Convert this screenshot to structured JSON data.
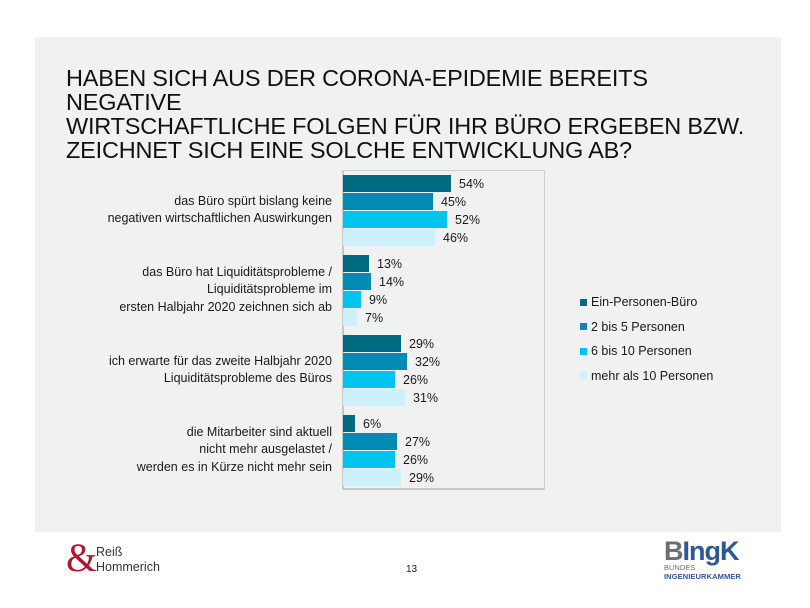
{
  "page": {
    "page_number": "13",
    "logos": {
      "left": {
        "symbol": "&",
        "text": "Reiß\nHommerich"
      },
      "right": {
        "main_first": "B",
        "main_rest": "IngK",
        "line1": "BUNDES",
        "line2": "INGENIEURKAMMER"
      }
    }
  },
  "chart_data": {
    "type": "bar",
    "orientation": "horizontal",
    "title": "HABEN SICH AUS DER CORONA-EPIDEMIE BEREITS NEGATIVE\nWIRTSCHAFTLICHE FOLGEN FÜR IHR BÜRO ERGEBEN BZW.\nZEICHNET SICH EINE SOLCHE ENTWICKLUNG AB?",
    "xlabel": "",
    "ylabel": "",
    "xlim": [
      0,
      100
    ],
    "grid": false,
    "legend_position": "right",
    "value_format": "percent",
    "categories": [
      "das Büro spürt bislang keine\nnegativen wirtschaftlichen Auswirkungen",
      "das Büro hat Liquiditätsprobleme /\nLiquiditätsprobleme im \nersten Halbjahr 2020 zeichnen sich ab",
      "ich erwarte für das zweite Halbjahr 2020\nLiquiditätsprobleme des Büros",
      "die Mitarbeiter sind aktuell \nnicht mehr ausgelastet /\nwerden es in Kürze nicht mehr sein"
    ],
    "series": [
      {
        "name": "Ein-Personen-Büro",
        "color": "#006a80",
        "values": [
          54,
          13,
          29,
          6
        ]
      },
      {
        "name": "2 bis 5 Personen",
        "color": "#008bb5",
        "values": [
          45,
          14,
          32,
          27
        ]
      },
      {
        "name": "6 bis 10 Personen",
        "color": "#00c4f0",
        "values": [
          52,
          9,
          26,
          26
        ]
      },
      {
        "name": "mehr als 10 Personen",
        "color": "#cdf0fb",
        "values": [
          46,
          7,
          31,
          29
        ]
      }
    ]
  }
}
